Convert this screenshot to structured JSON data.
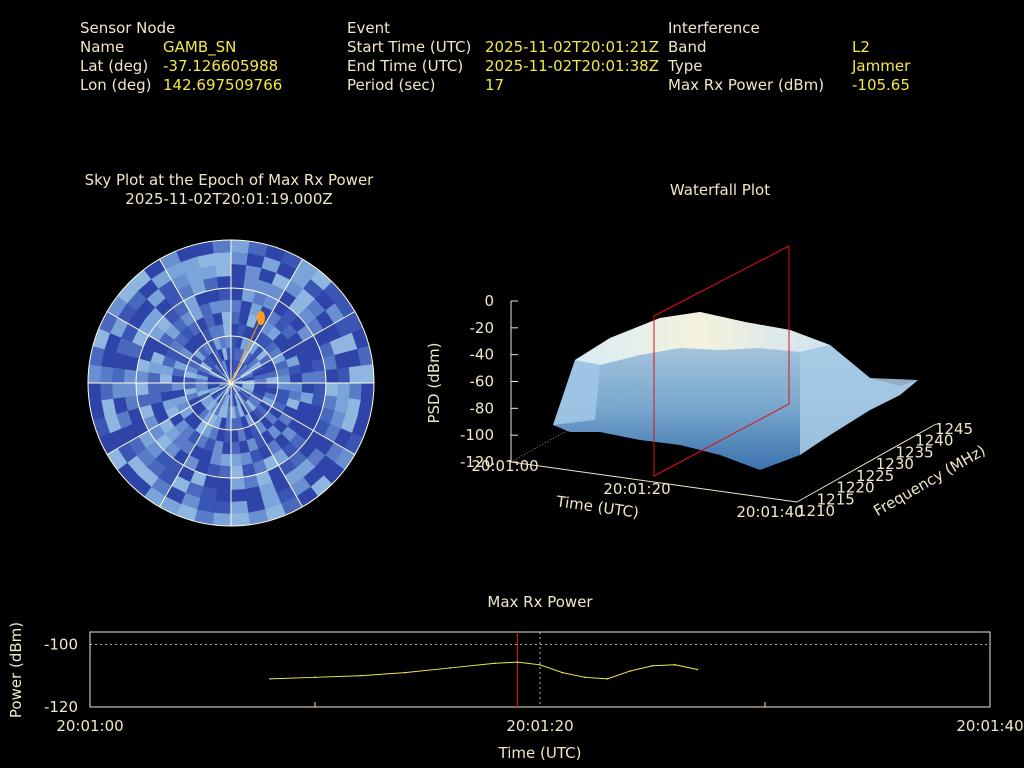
{
  "header": {
    "sensor": {
      "title": "Sensor Node",
      "name_label": "Name",
      "name": "GAMB_SN",
      "lat_label": "Lat (deg)",
      "lat": "-37.126605988",
      "lon_label": "Lon (deg)",
      "lon": "142.697509766"
    },
    "event": {
      "title": "Event",
      "start_label": "Start Time (UTC)",
      "start": "2025-11-02T20:01:21Z",
      "end_label": "End Time (UTC)",
      "end": "2025-11-02T20:01:38Z",
      "period_label": "Period (sec)",
      "period": "17"
    },
    "interference": {
      "title": "Interference",
      "band_label": "Band",
      "band": "L2",
      "type_label": "Type",
      "type": "Jammer",
      "power_label": "Max Rx Power (dBm)",
      "power": "-105.65"
    }
  },
  "colors": {
    "label": "#f0e6c8",
    "value": "#f2e84a",
    "sky_blue_dark": "#2f44a8",
    "sky_blue_light": "#8fb6e0",
    "hotspot": "#ff9a1a",
    "marker_line": "#e01010",
    "trace": "#f2e84a"
  },
  "chart_data": [
    {
      "type": "polar-heatmap",
      "title": "Sky Plot at the Epoch of Max Rx Power",
      "subtitle": "2025-11-02T20:01:19.000Z",
      "rings": 3,
      "spokes": 12,
      "hotspot": {
        "azimuth_deg": 15,
        "elevation_fraction": 0.55
      }
    },
    {
      "type": "3d-surface",
      "title": "Waterfall Plot",
      "zlabel": "PSD (dBm)",
      "xlabel": "Time (UTC)",
      "ylabel": "Frequency (MHz)",
      "z_ticks": [
        "0",
        "-20",
        "-40",
        "-60",
        "-80",
        "-100",
        "-120"
      ],
      "x_ticks": [
        "20:01:00",
        "20:01:20",
        "20:01:40"
      ],
      "y_ticks": [
        "1210",
        "1215",
        "1220",
        "1225",
        "1230",
        "1235",
        "1240",
        "1245"
      ],
      "zlim": [
        -120,
        0
      ],
      "xlim": [
        "20:01:00",
        "20:01:40"
      ],
      "ylim": [
        1210,
        1245
      ],
      "marker_time": "20:01:19"
    },
    {
      "type": "line",
      "title": "Max Rx Power",
      "xlabel": "Time (UTC)",
      "ylabel": "Power (dBm)",
      "x_ticks": [
        "20:01:00",
        "20:01:20",
        "20:01:40"
      ],
      "y_ticks": [
        "-100",
        "-120"
      ],
      "xlim_sec": [
        0,
        40
      ],
      "ylim": [
        -120,
        -96
      ],
      "marker_time_sec": 19,
      "series": [
        {
          "x": [
            8,
            10,
            12,
            14,
            16,
            18,
            19,
            20,
            21,
            22,
            23,
            24,
            25,
            26,
            27
          ],
          "y": [
            -111,
            -110.5,
            -110,
            -109,
            -107.5,
            -106,
            -105.65,
            -106.5,
            -109,
            -110.5,
            -111,
            -108.5,
            -106.8,
            -106.5,
            -108
          ]
        }
      ]
    }
  ]
}
